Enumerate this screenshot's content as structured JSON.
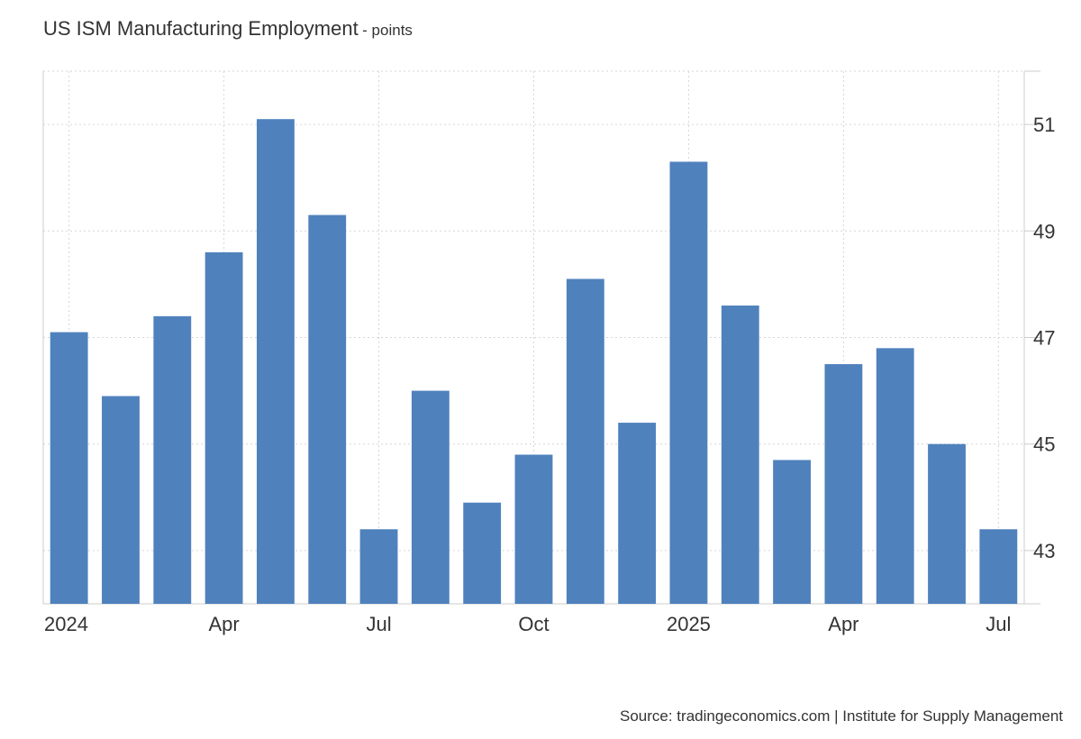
{
  "header": {
    "title": "US ISM Manufacturing Employment",
    "unit": "points"
  },
  "footer": {
    "source": "Source: tradingeconomics.com | Institute for Supply Management"
  },
  "colors": {
    "bar": "#4f81bd",
    "grid": "#d6d6d6",
    "axis": "#cccccc",
    "text": "#333333"
  },
  "chart_data": {
    "type": "bar",
    "title": "US ISM Manufacturing Employment",
    "unit": "points",
    "categories": [
      "2024-01",
      "2024-02",
      "2024-03",
      "2024-04",
      "2024-05",
      "2024-06",
      "2024-07",
      "2024-08",
      "2024-09",
      "2024-10",
      "2024-11",
      "2024-12",
      "2025-01",
      "2025-02",
      "2025-03",
      "2025-04",
      "2025-05",
      "2025-06",
      "2025-07"
    ],
    "values": [
      47.1,
      45.9,
      47.4,
      48.6,
      51.1,
      49.3,
      43.4,
      46.0,
      43.9,
      44.8,
      48.1,
      45.4,
      50.3,
      47.6,
      44.7,
      46.5,
      46.8,
      45.0,
      43.4
    ],
    "x_tick_labels": [
      {
        "category": "2024-01",
        "label": "2024"
      },
      {
        "category": "2024-04",
        "label": "Apr"
      },
      {
        "category": "2024-07",
        "label": "Jul"
      },
      {
        "category": "2024-10",
        "label": "Oct"
      },
      {
        "category": "2025-01",
        "label": "2025"
      },
      {
        "category": "2025-04",
        "label": "Apr"
      },
      {
        "category": "2025-07",
        "label": "Jul"
      }
    ],
    "y_ticks": [
      43,
      45,
      47,
      49,
      51
    ],
    "ylim": [
      42,
      52
    ],
    "y_axis_side": "right",
    "grid": true,
    "legend": "none"
  }
}
